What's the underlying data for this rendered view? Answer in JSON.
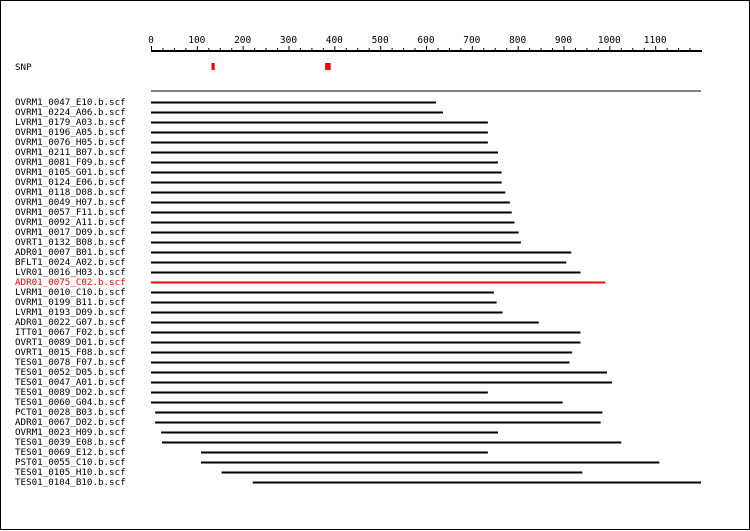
{
  "axis": {
    "min": 0,
    "max": 1200,
    "tick_labels": [
      "0",
      "100",
      "200",
      "300",
      "400",
      "500",
      "600",
      "700",
      "800",
      "900",
      "1000",
      "1100"
    ],
    "minor_step": 25
  },
  "snp": {
    "label": "SNP",
    "marks": [
      {
        "start": 132,
        "end": 139
      },
      {
        "start": 380,
        "end": 392
      }
    ],
    "color": "#ff0000"
  },
  "colors": {
    "normal": "#000000",
    "highlight": "#ff0000"
  },
  "reads": [
    {
      "name": "OVRM1_0047_E10.b.scf",
      "start": 0,
      "end": 622
    },
    {
      "name": "OVRM1_0224_A06.b.scf",
      "start": 0,
      "end": 637
    },
    {
      "name": "LVRM1_0179_A03.b.scf",
      "start": 0,
      "end": 735
    },
    {
      "name": "OVRM1_0196_A05.b.scf",
      "start": 0,
      "end": 735
    },
    {
      "name": "OVRM1_0076_H05.b.scf",
      "start": 0,
      "end": 735
    },
    {
      "name": "OVRM1_0211_B07.b.scf",
      "start": 0,
      "end": 757
    },
    {
      "name": "OVRM1_0081_F09.b.scf",
      "start": 0,
      "end": 757
    },
    {
      "name": "OVRM1_0105_G01.b.scf",
      "start": 0,
      "end": 765
    },
    {
      "name": "OVRM1_0124_E06.b.scf",
      "start": 0,
      "end": 765
    },
    {
      "name": "OVRM1_0118_D08.b.scf",
      "start": 0,
      "end": 773
    },
    {
      "name": "OVRM1_0049_H07.b.scf",
      "start": 0,
      "end": 783
    },
    {
      "name": "OVRM1_0057_F11.b.scf",
      "start": 0,
      "end": 787
    },
    {
      "name": "OVRM1_0092_A11.b.scf",
      "start": 0,
      "end": 793
    },
    {
      "name": "OVRM1_0017_D09.b.scf",
      "start": 0,
      "end": 802
    },
    {
      "name": "OVRT1_0132_B08.b.scf",
      "start": 0,
      "end": 807
    },
    {
      "name": "ADR01_0007_B01.b.scf",
      "start": 0,
      "end": 917
    },
    {
      "name": "BFLT1_0024_A02.b.scf",
      "start": 0,
      "end": 906
    },
    {
      "name": "LVR01_0016_H03.b.scf",
      "start": 0,
      "end": 937
    },
    {
      "name": "ADR01_0075_C02.b.scf",
      "start": 0,
      "end": 991,
      "highlight": true
    },
    {
      "name": "LVRM1_0010_C10.b.scf",
      "start": 0,
      "end": 748
    },
    {
      "name": "OVRM1_0199_B11.b.scf",
      "start": 0,
      "end": 754
    },
    {
      "name": "LVRM1_0193_D09.b.scf",
      "start": 0,
      "end": 767
    },
    {
      "name": "ADR01_0022_G07.b.scf",
      "start": 0,
      "end": 846
    },
    {
      "name": "ITT01_0067_F02.b.scf",
      "start": 0,
      "end": 937
    },
    {
      "name": "OVRT1_0089_D01.b.scf",
      "start": 0,
      "end": 937
    },
    {
      "name": "OVRT1_0015_F08.b.scf",
      "start": 0,
      "end": 919
    },
    {
      "name": "TES01_0078_F07.b.scf",
      "start": 0,
      "end": 913
    },
    {
      "name": "TES01_0052_D05.b.scf",
      "start": 0,
      "end": 995
    },
    {
      "name": "TES01_0047_A01.b.scf",
      "start": 0,
      "end": 1006
    },
    {
      "name": "TES01_0089_D02.b.scf",
      "start": 0,
      "end": 735
    },
    {
      "name": "TES01_0060_G04.b.scf",
      "start": 0,
      "end": 898
    },
    {
      "name": "PCT01_0028_B03.b.scf",
      "start": 9,
      "end": 985
    },
    {
      "name": "ADR01_0067_D02.b.scf",
      "start": 9,
      "end": 981
    },
    {
      "name": "OVRM1_0023_H09.b.scf",
      "start": 22,
      "end": 757
    },
    {
      "name": "TES01_0039_E08.b.scf",
      "start": 24,
      "end": 1026
    },
    {
      "name": "TES01_0069_E12.b.scf",
      "start": 109,
      "end": 735
    },
    {
      "name": "PST01_0055_C10.b.scf",
      "start": 109,
      "end": 1109
    },
    {
      "name": "TES01_0105_H10.b.scf",
      "start": 154,
      "end": 941
    },
    {
      "name": "TES01_0104_B10.b.scf",
      "start": 222,
      "end": 1200
    }
  ]
}
